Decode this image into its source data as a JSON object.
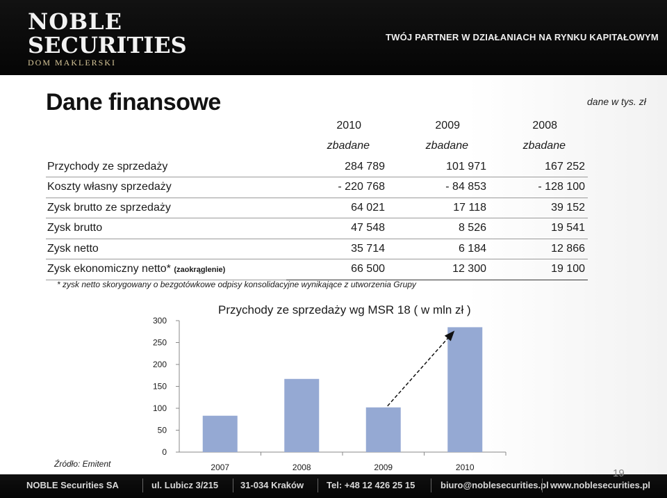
{
  "header": {
    "logo_line1": "NOBLE",
    "logo_line2": "SECURITIES",
    "logo_line3": "DOM MAKLERSKI",
    "tagline": "TWÓJ PARTNER W DZIAŁANIACH NA RYNKU KAPITAŁOWYM"
  },
  "slide": {
    "title": "Dane finansowe",
    "unit_note": "dane w tys. zł",
    "footnote": "* zysk netto skorygowany o bezgotówkowe odpisy konsolidacyjne wynikające z utworzenia Grupy",
    "source": "Źródło: Emitent",
    "page_number": "19"
  },
  "table": {
    "years": [
      "2010",
      "2009",
      "2008"
    ],
    "subheaders": [
      "zbadane",
      "zbadane",
      "zbadane"
    ],
    "rows": [
      {
        "label": "Przychody ze sprzedaży",
        "note": "",
        "values": [
          "284 789",
          "101 971",
          "167 252"
        ]
      },
      {
        "label": "Koszty własny sprzedaży",
        "note": "",
        "values": [
          "- 220 768",
          "- 84 853",
          "- 128 100"
        ]
      },
      {
        "label": "Zysk brutto ze sprzedaży",
        "note": "",
        "values": [
          "64 021",
          "17 118",
          "39 152"
        ]
      },
      {
        "label": "Zysk brutto",
        "note": "",
        "values": [
          "47 548",
          "8 526",
          "19 541"
        ]
      },
      {
        "label": "Zysk netto",
        "note": "",
        "values": [
          "35 714",
          "6 184",
          "12 866"
        ]
      },
      {
        "label": "Zysk ekonomiczny netto*",
        "note": "(zaokrąglenie)",
        "values": [
          "66 500",
          "12 300",
          "19 100"
        ]
      }
    ]
  },
  "chart_data": {
    "type": "bar",
    "title": "Przychody ze sprzedaży wg MSR 18 ( w mln zł )",
    "categories": [
      "2007",
      "2008",
      "2009",
      "2010"
    ],
    "values": [
      83,
      167,
      102,
      285
    ],
    "ylim": [
      0,
      300
    ],
    "yticks": [
      "0",
      "50",
      "100",
      "150",
      "200",
      "250",
      "300"
    ],
    "grid": false,
    "bar_color": "#95a9d3",
    "annotation": "dashed arrow from 2009 bar to 2010 bar"
  },
  "footer": {
    "items": [
      "NOBLE Securities SA",
      "ul. Lubicz 3/215",
      "31-034 Kraków",
      "Tel: +48 12 426 25 15",
      "biuro@noblesecurities.pl",
      "www.noblesecurities.pl"
    ]
  }
}
